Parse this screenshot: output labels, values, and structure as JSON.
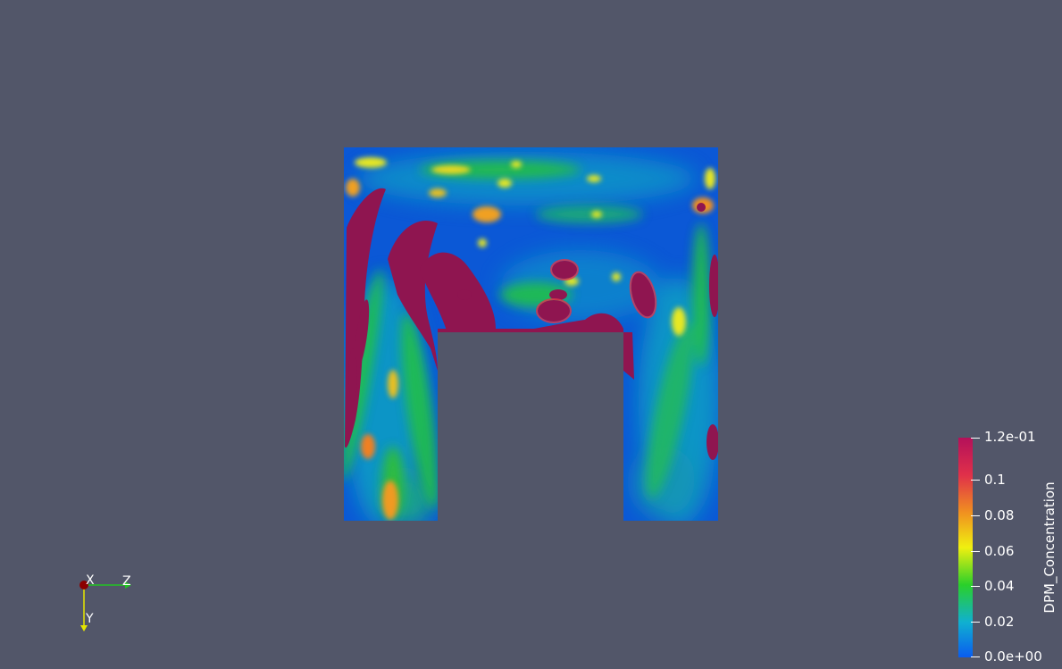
{
  "scene": {
    "background_color": "#525669",
    "field_colors": {
      "low": "#0b58d6",
      "cyan": "#0f9fc0",
      "green": "#23c043",
      "yellow": "#e6e81d",
      "orange": "#ef8c24",
      "high": "#8f1550"
    }
  },
  "color_legend": {
    "title": "DPM_Concentration",
    "colormap": [
      "#0a5cf0",
      "#10b0d0",
      "#2ad02a",
      "#f0f010",
      "#f09020",
      "#e0304a",
      "#b4105a"
    ],
    "ticks": [
      {
        "label": "1.2e-01",
        "value": 0.12
      },
      {
        "label": "0.1",
        "value": 0.1
      },
      {
        "label": "0.08",
        "value": 0.08
      },
      {
        "label": "0.06",
        "value": 0.06
      },
      {
        "label": "0.04",
        "value": 0.04
      },
      {
        "label": "0.02",
        "value": 0.02
      },
      {
        "label": "0.0e+00",
        "value": 0.0
      }
    ],
    "range": [
      0.0,
      0.12
    ]
  },
  "orientation_axes": {
    "x_label": "X",
    "y_label": "Y",
    "z_label": "Z",
    "x_color": "#8b0000",
    "y_color": "#e6e600",
    "z_color": "#22c322"
  }
}
